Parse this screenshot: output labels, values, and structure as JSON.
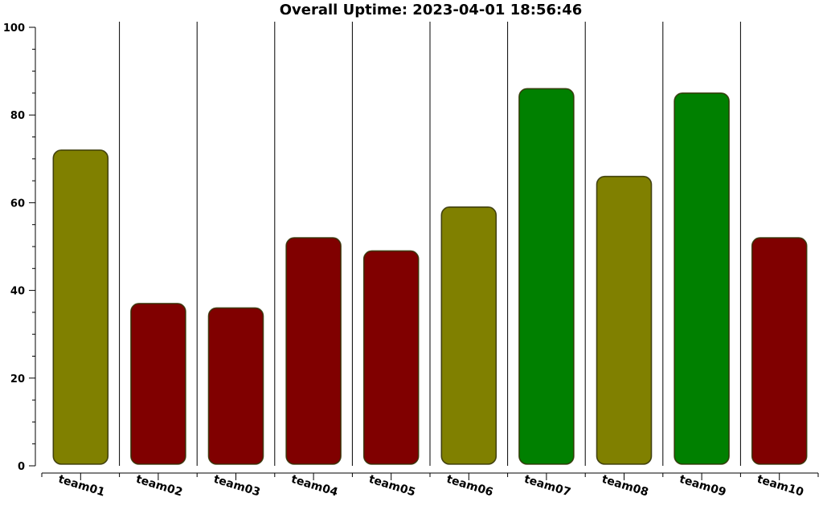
{
  "chart_data": {
    "type": "bar",
    "title": "Overall Uptime: 2023-04-01 18:56:46",
    "xlabel": "",
    "ylabel": "",
    "ylim": [
      0,
      100
    ],
    "yticks": [
      0,
      20,
      40,
      60,
      80,
      100
    ],
    "categories": [
      "team01",
      "team02",
      "team03",
      "team04",
      "team05",
      "team06",
      "team07",
      "team08",
      "team09",
      "team10"
    ],
    "values": [
      72,
      37,
      36,
      52,
      49,
      59,
      86,
      66,
      85,
      52
    ],
    "bar_colors": [
      "#808000",
      "#800000",
      "#800000",
      "#800000",
      "#800000",
      "#808000",
      "#008000",
      "#808000",
      "#008000",
      "#800000"
    ],
    "grid": false,
    "separators": true
  }
}
